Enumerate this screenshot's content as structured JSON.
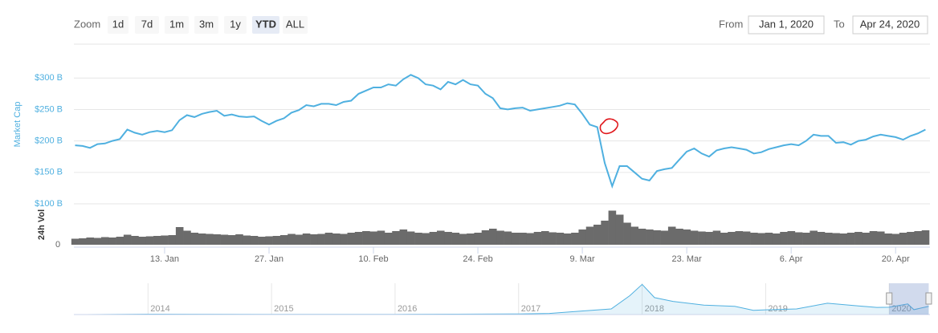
{
  "toolbar": {
    "zoom_label": "Zoom",
    "options": [
      "1d",
      "7d",
      "1m",
      "3m",
      "1y",
      "YTD",
      "ALL"
    ],
    "selected": "YTD",
    "from_label": "From",
    "from": "Jan 1, 2020",
    "to_label": "To",
    "to": "Apr 24, 2020"
  },
  "chart_data": {
    "type": "line",
    "x": [
      0,
      1,
      2,
      3,
      4,
      5,
      6,
      7,
      8,
      9,
      10,
      11,
      12,
      13,
      14,
      15,
      16,
      17,
      18,
      19,
      20,
      21,
      22,
      23,
      24,
      25,
      26,
      27,
      28,
      29,
      30,
      31,
      32,
      33,
      34,
      35,
      36,
      37,
      38,
      39,
      40,
      41,
      42,
      43,
      44,
      45,
      46,
      47,
      48,
      49,
      50,
      51,
      52,
      53,
      54,
      55,
      56,
      57,
      58,
      59,
      60,
      61,
      62,
      63,
      64,
      65,
      66,
      67,
      68,
      69,
      70,
      71,
      72,
      73,
      74,
      75,
      76,
      77,
      78,
      79,
      80,
      81,
      82,
      83,
      84,
      85,
      86,
      87,
      88,
      89,
      90,
      91,
      92,
      93,
      94,
      95,
      96,
      97,
      98,
      99,
      100,
      101,
      102,
      103,
      104,
      105,
      106,
      107,
      108,
      109,
      110,
      111,
      112,
      113,
      114
    ],
    "xlim": [
      0,
      114.5
    ],
    "xticks": [
      {
        "value": 12,
        "label": "13. Jan"
      },
      {
        "value": 26,
        "label": "27. Jan"
      },
      {
        "value": 40,
        "label": "10. Feb"
      },
      {
        "value": 54,
        "label": "24. Feb"
      },
      {
        "value": 68,
        "label": "9. Mar"
      },
      {
        "value": 82,
        "label": "23. Mar"
      },
      {
        "value": 96,
        "label": "6. Apr"
      },
      {
        "value": 110,
        "label": "20. Apr"
      }
    ],
    "ylim": [
      100,
      345
    ],
    "yticks": [
      {
        "value": 100,
        "label": "$100 B"
      },
      {
        "value": 150,
        "label": "$150 B"
      },
      {
        "value": 200,
        "label": "$200 B"
      },
      {
        "value": 250,
        "label": "$250 B"
      },
      {
        "value": 300,
        "label": "$300 B"
      }
    ],
    "y2lim": [
      0,
      100
    ],
    "y2ticks": [
      0
    ],
    "grid": true,
    "series": [
      {
        "name": "Market Cap",
        "color": "#4fb0e0",
        "values": [
          193,
          192,
          189,
          195,
          196,
          200,
          203,
          218,
          213,
          210,
          214,
          216,
          214,
          217,
          233,
          241,
          238,
          243,
          246,
          248,
          240,
          242,
          239,
          238,
          239,
          232,
          226,
          232,
          236,
          245,
          249,
          257,
          255,
          259,
          259,
          257,
          262,
          264,
          275,
          280,
          285,
          285,
          290,
          288,
          298,
          305,
          300,
          290,
          288,
          282,
          294,
          290,
          297,
          290,
          288,
          275,
          268,
          252,
          250,
          252,
          253,
          248,
          250,
          252,
          254,
          256,
          260,
          258,
          243,
          226,
          222,
          165,
          128,
          160,
          160,
          150,
          140,
          137,
          152,
          155,
          157,
          170,
          183,
          188,
          180,
          175,
          185,
          188,
          190,
          188,
          186,
          180,
          182,
          187,
          190,
          193,
          195,
          193,
          200,
          210,
          208,
          208,
          197,
          198,
          194,
          200,
          202,
          207,
          210,
          208,
          206,
          202,
          208,
          212,
          218
        ]
      },
      {
        "name": "24h Vol",
        "color": "#6b6b6b",
        "axis": "y2",
        "values": [
          15,
          16,
          18,
          17,
          19,
          18,
          20,
          25,
          22,
          20,
          21,
          22,
          23,
          24,
          44,
          35,
          30,
          28,
          27,
          26,
          25,
          24,
          26,
          23,
          22,
          20,
          21,
          22,
          24,
          27,
          25,
          28,
          26,
          27,
          30,
          28,
          27,
          30,
          32,
          34,
          33,
          35,
          30,
          34,
          38,
          33,
          30,
          29,
          32,
          35,
          32,
          30,
          27,
          28,
          30,
          36,
          40,
          35,
          33,
          30,
          30,
          29,
          32,
          34,
          31,
          30,
          28,
          30,
          38,
          45,
          50,
          60,
          85,
          75,
          55,
          45,
          40,
          38,
          36,
          35,
          45,
          40,
          38,
          35,
          33,
          32,
          35,
          30,
          32,
          34,
          33,
          30,
          29,
          30,
          28,
          32,
          34,
          31,
          30,
          35,
          32,
          30,
          29,
          28,
          30,
          32,
          30,
          34,
          33,
          28,
          27,
          30,
          32,
          34,
          36
        ]
      }
    ],
    "navigator": {
      "x": [
        2013.4,
        2013.5,
        2014.0,
        2014.5,
        2015.0,
        2015.5,
        2016.0,
        2016.5,
        2017.0,
        2017.25,
        2017.5,
        2017.75,
        2017.9,
        2018.0,
        2018.1,
        2018.25,
        2018.5,
        2018.75,
        2018.9,
        2019.0,
        2019.25,
        2019.5,
        2019.75,
        2019.9,
        2020.0,
        2020.15,
        2020.2,
        2020.32
      ],
      "values": [
        1,
        1,
        10,
        8,
        5,
        4,
        7,
        11,
        18,
        30,
        90,
        150,
        500,
        800,
        450,
        350,
        250,
        220,
        110,
        125,
        150,
        300,
        230,
        190,
        193,
        280,
        130,
        218
      ],
      "xlim": [
        2013.4,
        2020.33
      ],
      "ylim": [
        0,
        830
      ],
      "xticks": [
        2014,
        2015,
        2016,
        2017,
        2018,
        2019,
        2020
      ],
      "range": [
        2020.0,
        2020.32
      ],
      "color": "#4fb0e0"
    }
  }
}
